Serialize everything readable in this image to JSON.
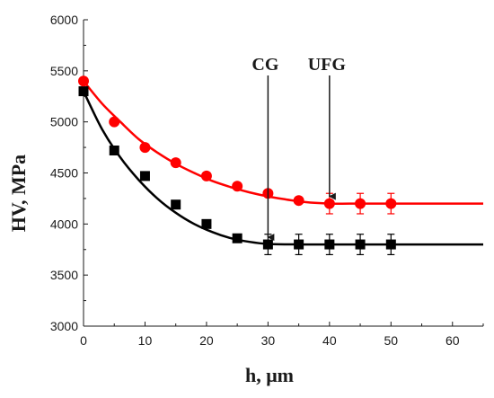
{
  "chart_data": {
    "type": "line",
    "xlabel": "h, μm",
    "ylabel": "HV, MPa",
    "xlim": [
      0,
      65
    ],
    "ylim": [
      3000,
      6000
    ],
    "x_ticks": [
      0,
      10,
      20,
      30,
      40,
      50,
      60
    ],
    "y_ticks": [
      3000,
      3500,
      4000,
      4500,
      5000,
      5500,
      6000
    ],
    "grid": false,
    "legend": "none",
    "series": [
      {
        "marker": "square",
        "color": "#000000",
        "x": [
          0,
          5,
          10,
          15,
          20,
          25,
          30,
          35,
          40,
          45,
          50
        ],
        "y": [
          5300,
          4720,
          4470,
          4190,
          4000,
          3860,
          3800,
          3800,
          3800,
          3800,
          3800
        ],
        "error": [
          0,
          0,
          0,
          0,
          0,
          0,
          100,
          100,
          100,
          100,
          100
        ],
        "fit_x": [
          0,
          3,
          6,
          9,
          12,
          15,
          18,
          21,
          24,
          27,
          30,
          35,
          40,
          45,
          50,
          55,
          60,
          65
        ],
        "fit_y": [
          5300,
          4930,
          4650,
          4430,
          4250,
          4110,
          4000,
          3920,
          3860,
          3825,
          3805,
          3800,
          3800,
          3800,
          3800,
          3800,
          3800,
          3800
        ]
      },
      {
        "marker": "circle",
        "color": "#ff0000",
        "x": [
          0,
          5,
          10,
          15,
          20,
          25,
          30,
          35,
          40,
          45,
          50
        ],
        "y": [
          5400,
          5000,
          4750,
          4600,
          4470,
          4370,
          4300,
          4230,
          4200,
          4200,
          4200
        ],
        "error": [
          0,
          0,
          0,
          0,
          0,
          0,
          0,
          0,
          100,
          100,
          100
        ],
        "fit_x": [
          0,
          3,
          6,
          9,
          12,
          15,
          18,
          21,
          24,
          27,
          30,
          33,
          36,
          40,
          45,
          50,
          55,
          60,
          65
        ],
        "fit_y": [
          5400,
          5180,
          5000,
          4830,
          4700,
          4590,
          4500,
          4420,
          4360,
          4310,
          4270,
          4240,
          4215,
          4200,
          4200,
          4200,
          4200,
          4200,
          4200
        ]
      }
    ],
    "annotations": [
      {
        "text": "CG",
        "x": 30,
        "y": 3800
      },
      {
        "text": "UFG",
        "x": 40,
        "y": 4200
      }
    ]
  }
}
